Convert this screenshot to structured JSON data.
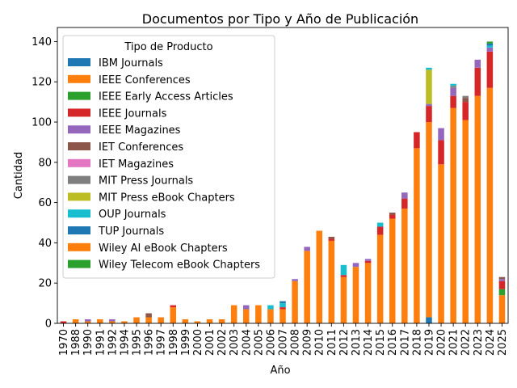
{
  "chart_data": {
    "type": "bar",
    "stacked": true,
    "title": "Documentos por Tipo y Año de Publicación",
    "xlabel": "Año",
    "ylabel": "Cantidad",
    "ylim": [
      0,
      147
    ],
    "yticks": [
      0,
      20,
      40,
      60,
      80,
      100,
      120,
      140
    ],
    "grid": false,
    "legend": {
      "title": "Tipo de Producto",
      "placement": "top-left"
    },
    "categories": [
      "1970",
      "1988",
      "1990",
      "1991",
      "1992",
      "1994",
      "1995",
      "1996",
      "1997",
      "1998",
      "1999",
      "2000",
      "2001",
      "2002",
      "2003",
      "2004",
      "2005",
      "2006",
      "2007",
      "2008",
      "2009",
      "2010",
      "2011",
      "2012",
      "2013",
      "2014",
      "2015",
      "2016",
      "2017",
      "2018",
      "2019",
      "2020",
      "2021",
      "2022",
      "2023",
      "2024",
      "2025"
    ],
    "series": [
      {
        "name": "IBM Journals",
        "color": "#1f77b4",
        "values": [
          0,
          0,
          0,
          0,
          0,
          0,
          0,
          0,
          0,
          0,
          0,
          0,
          0,
          0,
          0,
          0,
          0,
          0,
          0,
          0,
          0,
          0,
          0,
          0,
          0,
          0,
          0,
          0,
          0,
          0,
          3,
          0,
          0,
          0,
          0,
          0,
          0
        ]
      },
      {
        "name": "IEEE Conferences",
        "color": "#ff7f0e",
        "values": [
          0,
          2,
          1,
          2,
          1,
          1,
          3,
          3,
          3,
          8,
          2,
          1,
          2,
          2,
          9,
          7,
          9,
          7,
          7,
          21,
          36,
          46,
          41,
          23,
          28,
          30,
          44,
          52,
          57,
          87,
          97,
          79,
          107,
          101,
          113,
          117,
          14
        ]
      },
      {
        "name": "IEEE Early Access Articles",
        "color": "#2ca02c",
        "values": [
          0,
          0,
          0,
          0,
          0,
          0,
          0,
          0,
          0,
          0,
          0,
          0,
          0,
          0,
          0,
          0,
          0,
          0,
          0,
          0,
          0,
          0,
          0,
          0,
          0,
          0,
          0,
          0,
          0,
          0,
          0,
          0,
          0,
          0,
          0,
          0,
          3
        ]
      },
      {
        "name": "IEEE Journals",
        "color": "#d62728",
        "values": [
          1,
          0,
          0,
          0,
          0,
          0,
          0,
          0,
          0,
          1,
          0,
          0,
          0,
          0,
          0,
          0,
          0,
          0,
          1,
          0,
          0,
          0,
          1,
          1,
          0,
          1,
          4,
          2,
          5,
          8,
          8,
          12,
          6,
          9,
          14,
          18,
          4
        ]
      },
      {
        "name": "IEEE Magazines",
        "color": "#9467bd",
        "values": [
          0,
          0,
          1,
          0,
          1,
          0,
          0,
          0,
          0,
          0,
          0,
          0,
          0,
          0,
          0,
          2,
          0,
          0,
          0,
          1,
          2,
          0,
          0,
          0,
          2,
          1,
          0,
          0,
          3,
          0,
          1,
          6,
          4,
          0,
          4,
          2,
          1
        ]
      },
      {
        "name": "IET Conferences",
        "color": "#8c564b",
        "values": [
          0,
          0,
          0,
          0,
          0,
          0,
          0,
          2,
          0,
          0,
          0,
          0,
          0,
          0,
          0,
          0,
          0,
          0,
          0,
          0,
          0,
          0,
          1,
          0,
          0,
          0,
          0,
          1,
          0,
          0,
          0,
          0,
          0,
          2,
          0,
          0,
          1
        ]
      },
      {
        "name": "IET Magazines",
        "color": "#e377c2",
        "values": [
          0,
          0,
          0,
          0,
          0,
          0,
          0,
          0,
          0,
          0,
          0,
          0,
          0,
          0,
          0,
          0,
          0,
          0,
          0,
          0,
          0,
          0,
          0,
          0,
          0,
          0,
          0,
          0,
          0,
          0,
          0,
          0,
          0,
          0,
          0,
          0,
          0
        ]
      },
      {
        "name": "MIT Press Journals",
        "color": "#7f7f7f",
        "values": [
          0,
          0,
          0,
          0,
          0,
          0,
          0,
          0,
          0,
          0,
          0,
          0,
          0,
          0,
          0,
          0,
          0,
          0,
          0,
          0,
          0,
          0,
          0,
          0,
          0,
          0,
          0,
          0,
          0,
          0,
          0,
          0,
          1,
          1,
          0,
          0,
          0
        ]
      },
      {
        "name": "MIT Press eBook Chapters",
        "color": "#bcbd22",
        "values": [
          0,
          0,
          0,
          0,
          0,
          0,
          0,
          0,
          0,
          0,
          0,
          0,
          0,
          0,
          0,
          0,
          0,
          0,
          0,
          0,
          0,
          0,
          0,
          0,
          0,
          0,
          0,
          0,
          0,
          0,
          17,
          0,
          0,
          0,
          0,
          0,
          0
        ]
      },
      {
        "name": "OUP Journals",
        "color": "#17becf",
        "values": [
          0,
          0,
          0,
          0,
          0,
          0,
          0,
          0,
          0,
          0,
          0,
          0,
          0,
          0,
          0,
          0,
          0,
          2,
          2,
          0,
          0,
          0,
          0,
          5,
          0,
          0,
          2,
          0,
          0,
          0,
          1,
          0,
          1,
          0,
          0,
          1,
          0
        ]
      },
      {
        "name": "TUP Journals",
        "color": "#1f77b4",
        "values": [
          0,
          0,
          0,
          0,
          0,
          0,
          0,
          0,
          0,
          0,
          0,
          0,
          0,
          0,
          0,
          0,
          0,
          0,
          1,
          0,
          0,
          0,
          0,
          0,
          0,
          0,
          0,
          0,
          0,
          0,
          0,
          0,
          0,
          0,
          0,
          1,
          0
        ]
      },
      {
        "name": "Wiley AI eBook Chapters",
        "color": "#ff7f0e",
        "values": [
          0,
          0,
          0,
          0,
          0,
          0,
          0,
          0,
          0,
          0,
          0,
          0,
          0,
          0,
          0,
          0,
          0,
          0,
          0,
          0,
          0,
          0,
          0,
          0,
          0,
          0,
          0,
          0,
          0,
          0,
          0,
          0,
          0,
          0,
          0,
          0,
          0
        ]
      },
      {
        "name": "Wiley Telecom eBook Chapters",
        "color": "#2ca02c",
        "values": [
          0,
          0,
          0,
          0,
          0,
          0,
          0,
          0,
          0,
          0,
          0,
          0,
          0,
          0,
          0,
          0,
          0,
          0,
          0,
          0,
          0,
          0,
          0,
          0,
          0,
          0,
          0,
          0,
          0,
          0,
          0,
          0,
          0,
          0,
          0,
          1,
          0
        ]
      }
    ]
  }
}
